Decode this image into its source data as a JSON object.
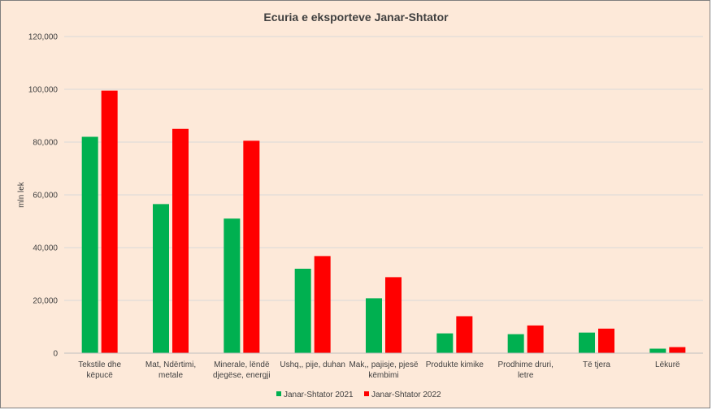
{
  "chart_data": {
    "type": "bar",
    "title": "Ecuria e eksporteve Janar-Shtator",
    "ylabel": "mln lek",
    "xlabel": "",
    "ylim": [
      0,
      120000
    ],
    "yticks": [
      0,
      20000,
      40000,
      60000,
      80000,
      100000,
      120000
    ],
    "ytick_labels": [
      "0",
      "20,000",
      "40,000",
      "60,000",
      "80,000",
      "100,000",
      "120,000"
    ],
    "grid": true,
    "legend_position": "bottom",
    "categories": [
      [
        "Tekstile dhe",
        "këpucë"
      ],
      [
        "Mat, Ndërtimi,",
        "metale"
      ],
      [
        "Minerale, lëndë",
        "djegëse, energji"
      ],
      [
        "Ushq,, pije, duhan"
      ],
      [
        "Mak,, pajisje, pjesë",
        "këmbimi"
      ],
      [
        "Produkte kimike"
      ],
      [
        "Prodhime druri,",
        "letre"
      ],
      [
        "Të tjera"
      ],
      [
        "Lëkurë"
      ]
    ],
    "series": [
      {
        "name": "Janar-Shtator 2021",
        "color": "#00b050",
        "values": [
          82000,
          56500,
          51000,
          32000,
          20800,
          7500,
          7200,
          7800,
          1700
        ]
      },
      {
        "name": "Janar-Shtator 2022",
        "color": "#ff0000",
        "values": [
          99500,
          85000,
          80500,
          36800,
          28800,
          14000,
          10500,
          9300,
          2300
        ]
      }
    ]
  }
}
